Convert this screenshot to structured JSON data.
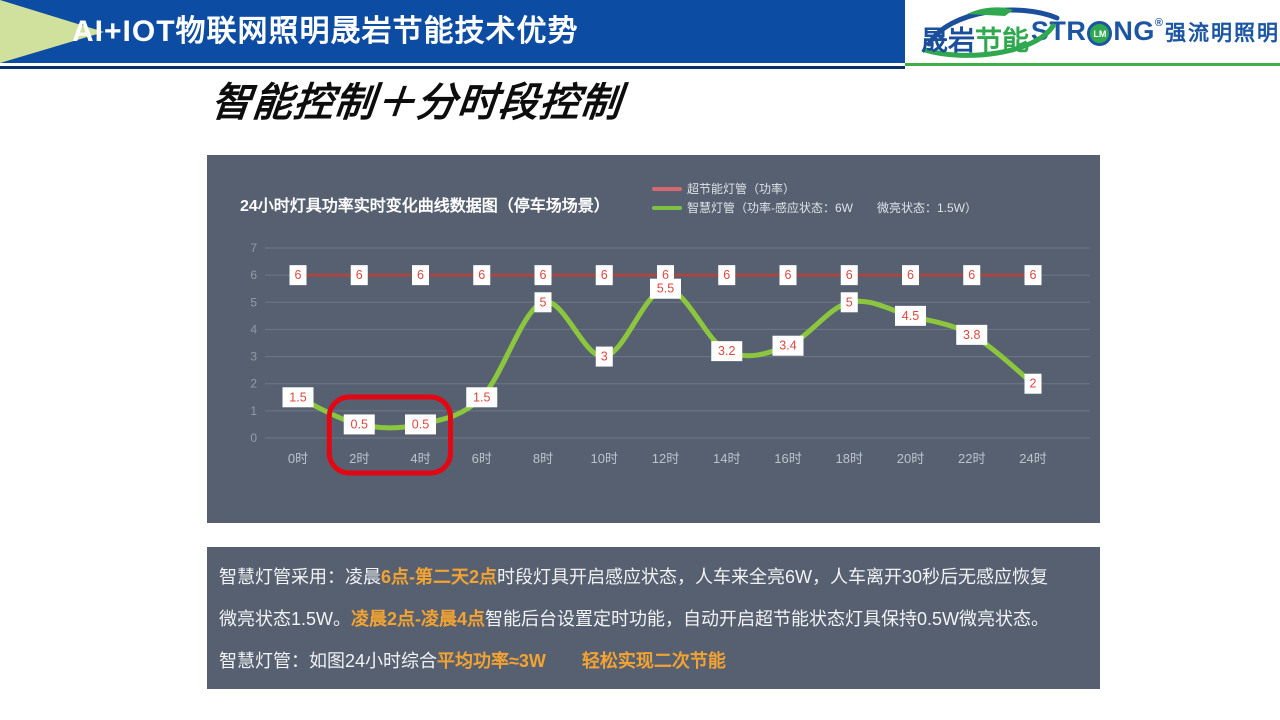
{
  "header": {
    "title": "AI+IOT物联网照明晟岩节能技术优势",
    "logo_shengyan": {
      "part1": "晟岩",
      "part2": "节能"
    },
    "logo_strong": {
      "pre": "STR",
      "circle": "LM",
      "post": "NG",
      "reg": "®",
      "cn": "强流明照明"
    }
  },
  "page_title": "智能控制＋分时段控制",
  "chart_panel": {
    "title": "24小时灯具功率实时变化曲线数据图（停车场场景）",
    "legend": [
      {
        "label": "超节能灯管（功率）",
        "color": "#d4696f"
      },
      {
        "label": "智慧灯管（功率-感应状态：6W　　微亮状态：1.5W）",
        "color": "#7dc242"
      }
    ]
  },
  "chart_data": {
    "type": "line",
    "title": "24小时灯具功率实时变化曲线数据图（停车场场景）",
    "categories": [
      "0时",
      "2时",
      "4时",
      "6时",
      "8时",
      "10时",
      "12时",
      "14时",
      "16时",
      "18时",
      "20时",
      "22时",
      "24时"
    ],
    "series": [
      {
        "name": "超节能灯管（功率）",
        "color": "#a84642",
        "smooth": false,
        "width": 3,
        "values": [
          6,
          6,
          6,
          6,
          6,
          6,
          6,
          6,
          6,
          6,
          6,
          6,
          6
        ]
      },
      {
        "name": "智慧灯管（功率）",
        "color": "#8cc63e",
        "smooth": true,
        "width": 5,
        "values": [
          1.5,
          0.5,
          0.5,
          1.5,
          5,
          3,
          5.5,
          3.2,
          3.4,
          5,
          4.5,
          3.8,
          2
        ]
      }
    ],
    "ylim": [
      0,
      7
    ],
    "yticks": [
      0,
      1,
      2,
      3,
      4,
      5,
      6,
      7
    ],
    "grid": true,
    "legend_position": "top-right",
    "data_labels": true,
    "label_text_color": "#e2453f",
    "label_bg_color": "#ffffff",
    "grid_color": "#6d7786",
    "ytick_color": "#949ba6",
    "xtick_color": "#bcc3cc",
    "annotation": {
      "type": "highlight-rect",
      "from_category": "2时",
      "to_category": "4时",
      "color": "#e30613"
    }
  },
  "info_panel": {
    "lines": [
      [
        {
          "text": "智慧灯管采用：凌晨",
          "highlight": false
        },
        {
          "text": "6点-第二天2点",
          "highlight": true
        },
        {
          "text": "时段灯具开启感应状态，人车来全亮6W，人车离开30秒后无感应恢复",
          "highlight": false
        }
      ],
      [
        {
          "text": "微亮状态1.5W。",
          "highlight": false
        },
        {
          "text": "凌晨2点-凌晨4点",
          "highlight": true
        },
        {
          "text": "智能后台设置定时功能，自动开启超节能状态灯具保持0.5W微亮状态。",
          "highlight": false
        }
      ],
      [
        {
          "text": "智慧灯管：如图24小时综合",
          "highlight": false
        },
        {
          "text": "平均功率≈3W",
          "highlight": true
        },
        {
          "text": "　　",
          "highlight": false
        },
        {
          "text": "轻松实现二次节能",
          "highlight": true
        }
      ]
    ]
  },
  "colors": {
    "header_blue": "#0c4ca3",
    "header_underline_navy": "#0b2f6b",
    "header_arrow_green": "#cfe19c",
    "logo_green_line": "#3fae49",
    "panel_slate": "#566070",
    "highlight_orange": "#f3a332",
    "highlight_red_box": "#e30613"
  }
}
